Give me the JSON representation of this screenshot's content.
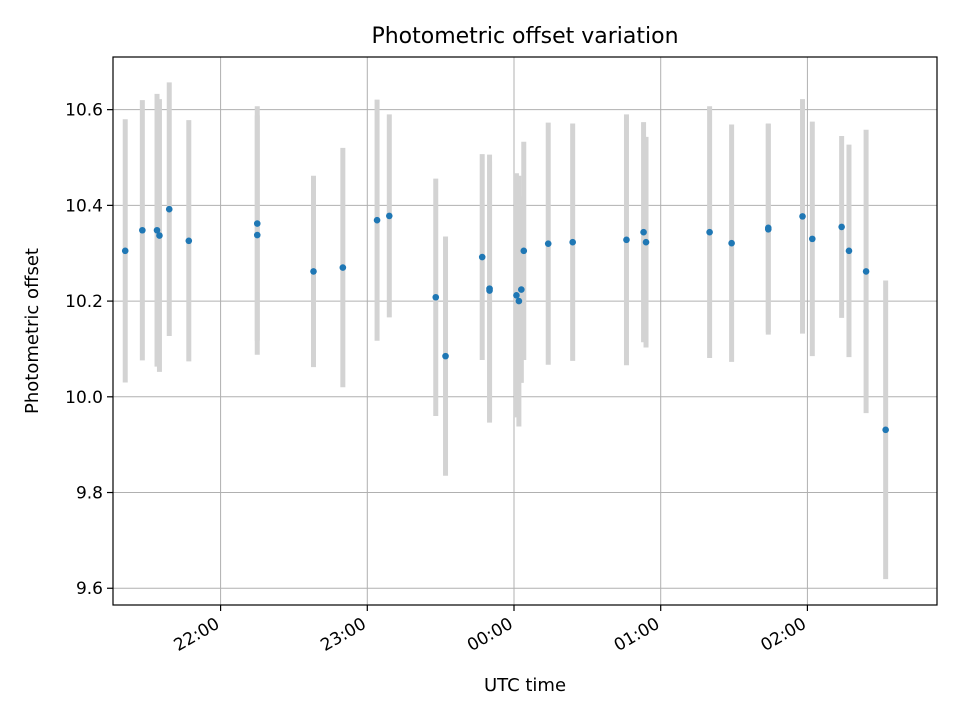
{
  "chart_data": {
    "type": "scatter",
    "title": "Photometric offset variation",
    "xlabel": "UTC time",
    "ylabel": "Photometric offset",
    "xlim": [
      "21:16",
      "02:53"
    ],
    "ylim": [
      9.565,
      10.71
    ],
    "x_ticks": [
      "22:00",
      "23:00",
      "00:00",
      "01:00",
      "02:00"
    ],
    "y_ticks": [
      "9.6",
      "9.8",
      "10.0",
      "10.2",
      "10.4",
      "10.6"
    ],
    "grid": true,
    "point_color": "#1f77b4",
    "errorbar_color": "#d3d3d3",
    "points": [
      {
        "t": "21:21",
        "y": 10.305,
        "err": 0.275
      },
      {
        "t": "21:28",
        "y": 10.348,
        "err": 0.272
      },
      {
        "t": "21:34",
        "y": 10.348,
        "err": 0.285
      },
      {
        "t": "21:35",
        "y": 10.337,
        "err": 0.285
      },
      {
        "t": "21:39",
        "y": 10.392,
        "err": 0.265
      },
      {
        "t": "21:47",
        "y": 10.326,
        "err": 0.252
      },
      {
        "t": "22:15",
        "y": 10.362,
        "err": 0.245
      },
      {
        "t": "22:15",
        "y": 10.338,
        "err": 0.25
      },
      {
        "t": "22:38",
        "y": 10.262,
        "err": 0.2
      },
      {
        "t": "22:50",
        "y": 10.27,
        "err": 0.25
      },
      {
        "t": "23:04",
        "y": 10.369,
        "err": 0.252
      },
      {
        "t": "23:09",
        "y": 10.378,
        "err": 0.212
      },
      {
        "t": "23:28",
        "y": 10.208,
        "err": 0.248
      },
      {
        "t": "23:32",
        "y": 10.085,
        "err": 0.25
      },
      {
        "t": "23:47",
        "y": 10.292,
        "err": 0.215
      },
      {
        "t": "23:50",
        "y": 10.226,
        "err": 0.28
      },
      {
        "t": "23:50",
        "y": 10.222,
        "err": 0.27
      },
      {
        "t": "00:01",
        "y": 10.212,
        "err": 0.255
      },
      {
        "t": "00:02",
        "y": 10.2,
        "err": 0.262
      },
      {
        "t": "00:03",
        "y": 10.224,
        "err": 0.195
      },
      {
        "t": "00:04",
        "y": 10.305,
        "err": 0.228
      },
      {
        "t": "00:14",
        "y": 10.32,
        "err": 0.253
      },
      {
        "t": "00:24",
        "y": 10.323,
        "err": 0.248
      },
      {
        "t": "00:46",
        "y": 10.328,
        "err": 0.262
      },
      {
        "t": "00:53",
        "y": 10.344,
        "err": 0.23
      },
      {
        "t": "00:54",
        "y": 10.323,
        "err": 0.22
      },
      {
        "t": "01:20",
        "y": 10.344,
        "err": 0.263
      },
      {
        "t": "01:29",
        "y": 10.321,
        "err": 0.248
      },
      {
        "t": "01:44",
        "y": 10.35,
        "err": 0.22
      },
      {
        "t": "01:44",
        "y": 10.353,
        "err": 0.218
      },
      {
        "t": "01:58",
        "y": 10.377,
        "err": 0.245
      },
      {
        "t": "02:02",
        "y": 10.33,
        "err": 0.245
      },
      {
        "t": "02:14",
        "y": 10.355,
        "err": 0.19
      },
      {
        "t": "02:17",
        "y": 10.305,
        "err": 0.222
      },
      {
        "t": "02:24",
        "y": 10.262,
        "err": 0.296
      },
      {
        "t": "02:32",
        "y": 9.931,
        "err": 0.312
      }
    ]
  }
}
